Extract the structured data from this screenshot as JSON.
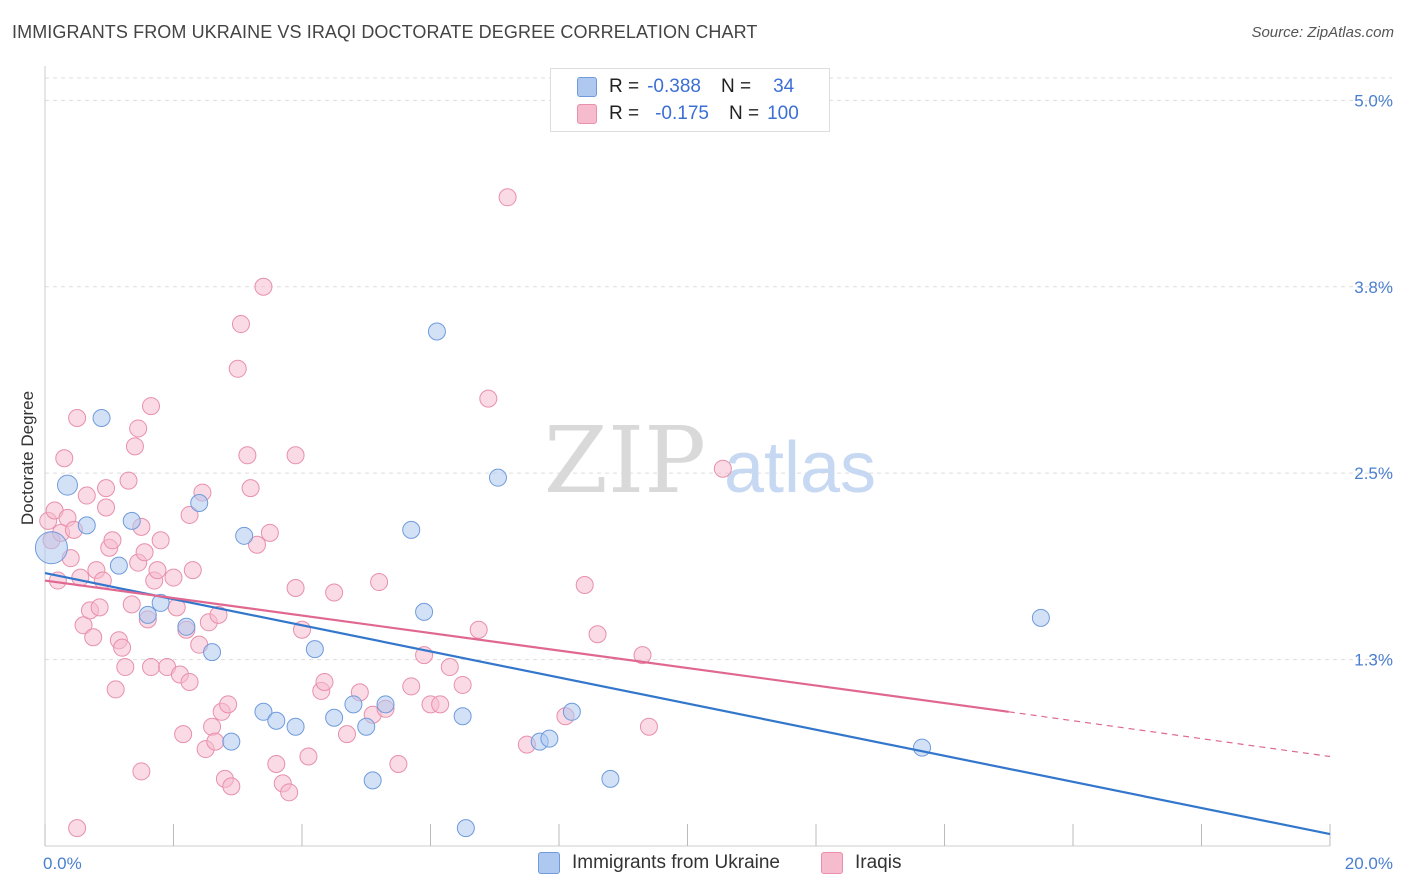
{
  "title": "IMMIGRANTS FROM UKRAINE VS IRAQI DOCTORATE DEGREE CORRELATION CHART",
  "source": "Source: ZipAtlas.com",
  "colors": {
    "ukraine_fill": "#aec8f0",
    "ukraine_stroke": "#6f9bdc",
    "ukraine_line": "#3377cc",
    "iraqi_fill": "#f6bccd",
    "iraqi_stroke": "#e890ac",
    "iraqi_line": "#e06890",
    "tick_text": "#4a7fd0",
    "grid": "#dddddd"
  },
  "legend_top": {
    "rows": [
      {
        "r_label": "R =",
        "r_value": "-0.388",
        "n_label": "N =",
        "n_value": "34"
      },
      {
        "r_label": "R =",
        "r_value": "-0.175",
        "n_label": "N =",
        "n_value": "100"
      }
    ]
  },
  "watermark": {
    "part1": "ZIP",
    "part2": "atlas"
  },
  "chart_data": {
    "type": "scatter",
    "title": "IMMIGRANTS FROM UKRAINE VS IRAQI DOCTORATE DEGREE CORRELATION CHART",
    "xlabel": "",
    "ylabel": "Doctorate Degree",
    "xlim": [
      0,
      20
    ],
    "ylim": [
      0,
      5.15
    ],
    "x_tick_labels": [
      "0.0%",
      "20.0%"
    ],
    "y_ticks": [
      1.25,
      2.5,
      3.75,
      5.0
    ],
    "y_tick_labels": [
      "1.3%",
      "2.5%",
      "3.8%",
      "5.0%"
    ],
    "grid": true,
    "legend_position": "bottom",
    "series": [
      {
        "name": "Immigrants from Ukraine",
        "color": "#aec8f0",
        "points": [
          [
            0.1,
            2.0
          ],
          [
            0.35,
            2.42
          ],
          [
            0.65,
            2.15
          ],
          [
            0.88,
            2.87
          ],
          [
            1.15,
            1.88
          ],
          [
            1.35,
            2.18
          ],
          [
            1.6,
            1.55
          ],
          [
            1.8,
            1.63
          ],
          [
            2.2,
            1.47
          ],
          [
            2.4,
            2.3
          ],
          [
            2.6,
            1.3
          ],
          [
            2.9,
            0.7
          ],
          [
            3.1,
            2.08
          ],
          [
            3.4,
            0.9
          ],
          [
            3.6,
            0.84
          ],
          [
            3.9,
            0.8
          ],
          [
            4.2,
            1.32
          ],
          [
            4.5,
            0.86
          ],
          [
            4.8,
            0.95
          ],
          [
            5.0,
            0.8
          ],
          [
            5.1,
            0.44
          ],
          [
            5.3,
            0.95
          ],
          [
            5.7,
            2.12
          ],
          [
            5.9,
            1.57
          ],
          [
            6.1,
            3.45
          ],
          [
            6.5,
            0.87
          ],
          [
            6.55,
            0.12
          ],
          [
            7.05,
            2.47
          ],
          [
            7.7,
            0.7
          ],
          [
            7.85,
            0.72
          ],
          [
            8.2,
            0.9
          ],
          [
            8.8,
            0.45
          ],
          [
            13.65,
            0.66
          ],
          [
            15.5,
            1.53
          ]
        ],
        "trend": {
          "x": [
            0,
            20
          ],
          "y": [
            1.83,
            0.08
          ]
        }
      },
      {
        "name": "Iraqis",
        "color": "#f6bccd",
        "points": [
          [
            0.05,
            2.18
          ],
          [
            0.1,
            2.05
          ],
          [
            0.15,
            2.25
          ],
          [
            0.2,
            1.78
          ],
          [
            0.25,
            2.1
          ],
          [
            0.3,
            2.6
          ],
          [
            0.35,
            2.2
          ],
          [
            0.4,
            1.93
          ],
          [
            0.45,
            2.12
          ],
          [
            0.5,
            2.87
          ],
          [
            0.55,
            1.8
          ],
          [
            0.6,
            1.48
          ],
          [
            0.65,
            2.35
          ],
          [
            0.7,
            1.58
          ],
          [
            0.75,
            1.4
          ],
          [
            0.8,
            1.85
          ],
          [
            0.85,
            1.6
          ],
          [
            0.9,
            1.78
          ],
          [
            0.95,
            2.27
          ],
          [
            1.0,
            2.0
          ],
          [
            1.05,
            2.05
          ],
          [
            1.1,
            1.05
          ],
          [
            1.15,
            1.38
          ],
          [
            1.2,
            1.33
          ],
          [
            1.25,
            1.2
          ],
          [
            1.3,
            2.45
          ],
          [
            1.35,
            1.62
          ],
          [
            1.4,
            2.68
          ],
          [
            1.45,
            1.9
          ],
          [
            1.5,
            2.14
          ],
          [
            1.55,
            1.97
          ],
          [
            1.6,
            1.52
          ],
          [
            1.65,
            1.2
          ],
          [
            1.7,
            1.78
          ],
          [
            1.75,
            1.85
          ],
          [
            1.8,
            2.05
          ],
          [
            1.9,
            1.2
          ],
          [
            2.0,
            1.8
          ],
          [
            2.05,
            1.6
          ],
          [
            2.1,
            1.15
          ],
          [
            2.15,
            0.75
          ],
          [
            2.2,
            1.45
          ],
          [
            2.25,
            1.1
          ],
          [
            2.3,
            1.85
          ],
          [
            2.4,
            1.35
          ],
          [
            2.45,
            2.37
          ],
          [
            2.5,
            0.65
          ],
          [
            2.55,
            1.5
          ],
          [
            2.6,
            0.8
          ],
          [
            2.65,
            0.7
          ],
          [
            2.7,
            1.55
          ],
          [
            2.75,
            0.9
          ],
          [
            2.8,
            0.45
          ],
          [
            2.85,
            0.95
          ],
          [
            2.9,
            0.4
          ],
          [
            3.0,
            3.2
          ],
          [
            3.05,
            3.5
          ],
          [
            3.15,
            2.62
          ],
          [
            3.2,
            2.4
          ],
          [
            3.3,
            2.02
          ],
          [
            3.4,
            3.75
          ],
          [
            3.5,
            2.1
          ],
          [
            3.6,
            0.55
          ],
          [
            3.7,
            0.42
          ],
          [
            3.8,
            0.36
          ],
          [
            3.9,
            2.62
          ],
          [
            4.0,
            1.45
          ],
          [
            4.1,
            0.6
          ],
          [
            4.3,
            1.04
          ],
          [
            4.5,
            1.7
          ],
          [
            4.7,
            0.75
          ],
          [
            4.9,
            1.03
          ],
          [
            5.1,
            0.88
          ],
          [
            5.2,
            1.77
          ],
          [
            5.3,
            0.92
          ],
          [
            5.5,
            0.55
          ],
          [
            5.7,
            1.07
          ],
          [
            5.9,
            1.28
          ],
          [
            6.0,
            0.95
          ],
          [
            6.15,
            0.95
          ],
          [
            6.3,
            1.2
          ],
          [
            6.5,
            1.08
          ],
          [
            6.75,
            1.45
          ],
          [
            6.9,
            3.0
          ],
          [
            7.2,
            4.35
          ],
          [
            7.5,
            0.68
          ],
          [
            8.1,
            0.87
          ],
          [
            8.4,
            1.75
          ],
          [
            8.6,
            1.42
          ],
          [
            9.3,
            1.28
          ],
          [
            9.4,
            0.8
          ],
          [
            10.55,
            2.53
          ],
          [
            0.5,
            0.12
          ],
          [
            1.45,
            2.8
          ],
          [
            1.5,
            0.5
          ],
          [
            1.65,
            2.95
          ],
          [
            2.25,
            2.22
          ],
          [
            3.9,
            1.73
          ],
          [
            4.35,
            1.1
          ],
          [
            0.95,
            2.4
          ]
        ],
        "trend": {
          "x": [
            0,
            15
          ],
          "y": [
            1.78,
            0.9
          ]
        },
        "trend_dashed": {
          "x": [
            15,
            20
          ],
          "y": [
            0.9,
            0.6
          ]
        }
      }
    ]
  },
  "legend_bottom": [
    {
      "label": "Immigrants from Ukraine"
    },
    {
      "label": "Iraqis"
    }
  ]
}
